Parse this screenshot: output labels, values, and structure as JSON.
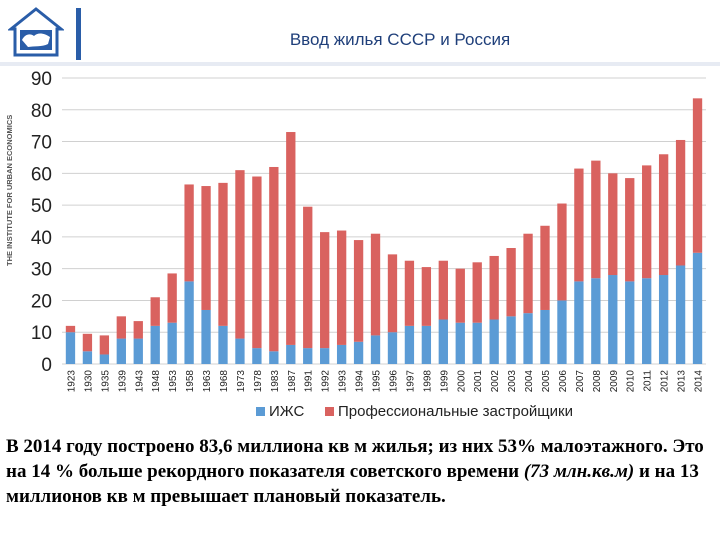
{
  "header": {
    "title": "Ввод жилья СССР и Россия",
    "logo_icon": "house-map-icon",
    "side_text": "THE INSTITUTE FOR URBAN ECONOMICS"
  },
  "chart_data": {
    "type": "bar",
    "stacked": true,
    "categories": [
      "1923",
      "1930",
      "1935",
      "1939",
      "1943",
      "1948",
      "1953",
      "1958",
      "1963",
      "1968",
      "1973",
      "1978",
      "1983",
      "1987",
      "1991",
      "1992",
      "1993",
      "1994",
      "1995",
      "1996",
      "1997",
      "1998",
      "1999",
      "2000",
      "2001",
      "2002",
      "2003",
      "2004",
      "2005",
      "2006",
      "2007",
      "2008",
      "2009",
      "2010",
      "2011",
      "2012",
      "2013",
      "2014"
    ],
    "series": [
      {
        "name": "ИЖС",
        "color": "#5b9bd5",
        "values": [
          10,
          4,
          3,
          8,
          8,
          12,
          13,
          26,
          17,
          12,
          8,
          5,
          4,
          6,
          5,
          5,
          6,
          7,
          9,
          10,
          12,
          12,
          14,
          13,
          13,
          14,
          15,
          16,
          17,
          20,
          26,
          27,
          28,
          26,
          27,
          28,
          31,
          35
        ]
      },
      {
        "name": "Профессиональные застройщики",
        "color": "#d9625f",
        "values": [
          2,
          5.5,
          6,
          7,
          5.5,
          9,
          15.5,
          30.5,
          39,
          45,
          53,
          54,
          58,
          67,
          44.5,
          36.5,
          36,
          32,
          32,
          24.5,
          20.5,
          18.5,
          18.5,
          17,
          19,
          20,
          21.5,
          25,
          26.5,
          30.5,
          35.5,
          37,
          32,
          32.5,
          35.5,
          38,
          39.5,
          48.6
        ]
      }
    ],
    "ylim": [
      0,
      90
    ],
    "yticks": [
      "0",
      "10",
      "20",
      "30",
      "40",
      "50",
      "60",
      "70",
      "80",
      "90"
    ],
    "grid": true,
    "legend": "bottom",
    "title": "",
    "xlabel": "",
    "ylabel": ""
  },
  "caption": {
    "part1": "В 2014 году построено 83,6 миллиона кв м жилья; из них 53% малоэтажного. Это на 14 % больше рекордного показателя советского времени ",
    "part2": "(73 млн.кв.м)",
    "part3": " и на 13 миллионов кв м превышает плановый показатель."
  }
}
